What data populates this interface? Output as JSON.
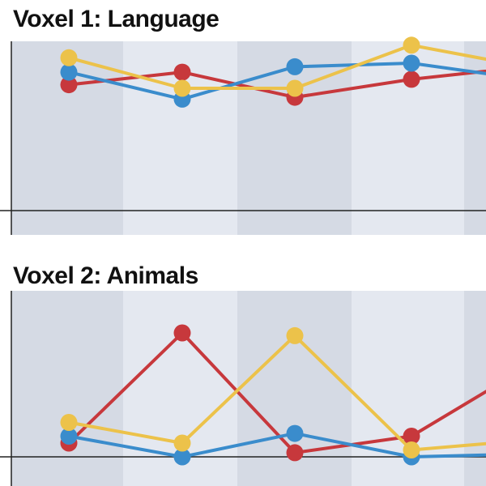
{
  "chart_data": [
    {
      "type": "line",
      "title": "Voxel 1: Language",
      "x": [
        1,
        2,
        3,
        4,
        5
      ],
      "series": [
        {
          "color": "#c7383c",
          "values": [
            0.7,
            0.77,
            0.63,
            0.73,
            0.8
          ]
        },
        {
          "color": "#3a8ccc",
          "values": [
            0.77,
            0.62,
            0.8,
            0.82,
            0.73
          ]
        },
        {
          "color": "#ecc24a",
          "values": [
            0.85,
            0.68,
            0.68,
            0.92,
            0.8
          ]
        }
      ],
      "ylim": [
        0,
        1
      ],
      "grid": false
    },
    {
      "type": "line",
      "title": "Voxel 2: Animals",
      "x": [
        1,
        2,
        3,
        4,
        5
      ],
      "series": [
        {
          "color": "#c7383c",
          "values": [
            0.1,
            0.9,
            0.03,
            0.15,
            0.65
          ]
        },
        {
          "color": "#3a8ccc",
          "values": [
            0.15,
            0.0,
            0.17,
            0.0,
            0.02
          ]
        },
        {
          "color": "#ecc24a",
          "values": [
            0.25,
            0.1,
            0.88,
            0.05,
            0.12
          ]
        }
      ],
      "ylim": [
        0,
        1
      ],
      "grid": false
    }
  ]
}
